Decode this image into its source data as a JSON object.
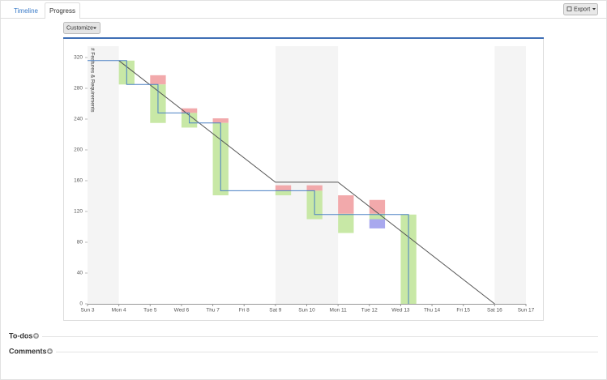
{
  "tabs": [
    "Timeline",
    "Progress"
  ],
  "export_button": "Export",
  "customize_button": "Customize",
  "sections": [
    "To-dos",
    "Comments"
  ],
  "chart_data": {
    "type": "burndown",
    "y_label": "# Features & Requirements",
    "xlim": [
      3,
      17
    ],
    "ylim": [
      0,
      320
    ],
    "yticks": [
      0,
      40,
      80,
      120,
      160,
      200,
      240,
      280,
      320
    ],
    "xticks": [
      {
        "value": 3,
        "label": "Sun 3"
      },
      {
        "value": 4,
        "label": "Mon 4"
      },
      {
        "value": 5,
        "label": "Tue 5"
      },
      {
        "value": 6,
        "label": "Wed 6"
      },
      {
        "value": 7,
        "label": "Thu 7"
      },
      {
        "value": 8,
        "label": "Fri 8"
      },
      {
        "value": 9,
        "label": "Sat 9"
      },
      {
        "value": 10,
        "label": "Sun 10"
      },
      {
        "value": 11,
        "label": "Mon 11"
      },
      {
        "value": 12,
        "label": "Tue 12"
      },
      {
        "value": 13,
        "label": "Wed 13"
      },
      {
        "value": 14,
        "label": "Thu 14"
      },
      {
        "value": 15,
        "label": "Fri 15"
      },
      {
        "value": 16,
        "label": "Sat 16"
      },
      {
        "value": 17,
        "label": "Sun 17"
      }
    ],
    "shaded_ranges": [
      [
        3,
        4
      ],
      [
        9,
        11
      ],
      [
        16,
        17
      ]
    ],
    "shade_color": "#f4f4f4",
    "bars": [
      {
        "color": "#f2a9ab",
        "x0": 5,
        "x1": 5.5,
        "low": 285,
        "high": 297
      },
      {
        "color": "#f2a9ab",
        "x0": 6,
        "x1": 6.5,
        "low": 248,
        "high": 254
      },
      {
        "color": "#f2a9ab",
        "x0": 7,
        "x1": 7.5,
        "low": 235,
        "high": 241
      },
      {
        "color": "#f2a9ab",
        "x0": 9,
        "x1": 9.5,
        "low": 147,
        "high": 154
      },
      {
        "color": "#f2a9ab",
        "x0": 10,
        "x1": 10.5,
        "low": 147,
        "high": 154
      },
      {
        "color": "#f2a9ab",
        "x0": 11,
        "x1": 11.5,
        "low": 117,
        "high": 141
      },
      {
        "color": "#f2a9ab",
        "x0": 12,
        "x1": 12.5,
        "low": 117,
        "high": 135
      },
      {
        "color": "#c8e8a6",
        "x0": 4,
        "x1": 4.5,
        "low": 285,
        "high": 316
      },
      {
        "color": "#c8e8a6",
        "x0": 5,
        "x1": 5.5,
        "low": 235,
        "high": 285
      },
      {
        "color": "#c8e8a6",
        "x0": 6,
        "x1": 6.5,
        "low": 229,
        "high": 248
      },
      {
        "color": "#c8e8a6",
        "x0": 7,
        "x1": 7.5,
        "low": 141,
        "high": 235
      },
      {
        "color": "#c8e8a6",
        "x0": 9,
        "x1": 9.5,
        "low": 141,
        "high": 147
      },
      {
        "color": "#c8e8a6",
        "x0": 10,
        "x1": 10.5,
        "low": 110,
        "high": 147
      },
      {
        "color": "#c8e8a6",
        "x0": 11,
        "x1": 11.5,
        "low": 92,
        "high": 117
      },
      {
        "color": "#c8e8a6",
        "x0": 12,
        "x1": 12.5,
        "low": 110,
        "high": 117
      },
      {
        "color": "#c8e8a6",
        "x0": 13,
        "x1": 13.5,
        "low": 0,
        "high": 116
      },
      {
        "color": "#a8a8ee",
        "x0": 12,
        "x1": 12.5,
        "low": 98,
        "high": 110
      }
    ],
    "lines": [
      {
        "color": "#555555",
        "x": [
          4,
          9,
          11,
          16
        ],
        "y": [
          316,
          158,
          158,
          0
        ]
      },
      {
        "color": "#4a80c4",
        "x": [
          3,
          4.25,
          4.25,
          5.25,
          5.25,
          6.25,
          6.25,
          7.25,
          7.25,
          10.25,
          10.25,
          13.25,
          13.25
        ],
        "y": [
          316,
          316,
          285,
          285,
          248,
          248,
          235,
          235,
          147,
          147,
          116,
          116,
          0
        ]
      }
    ]
  }
}
